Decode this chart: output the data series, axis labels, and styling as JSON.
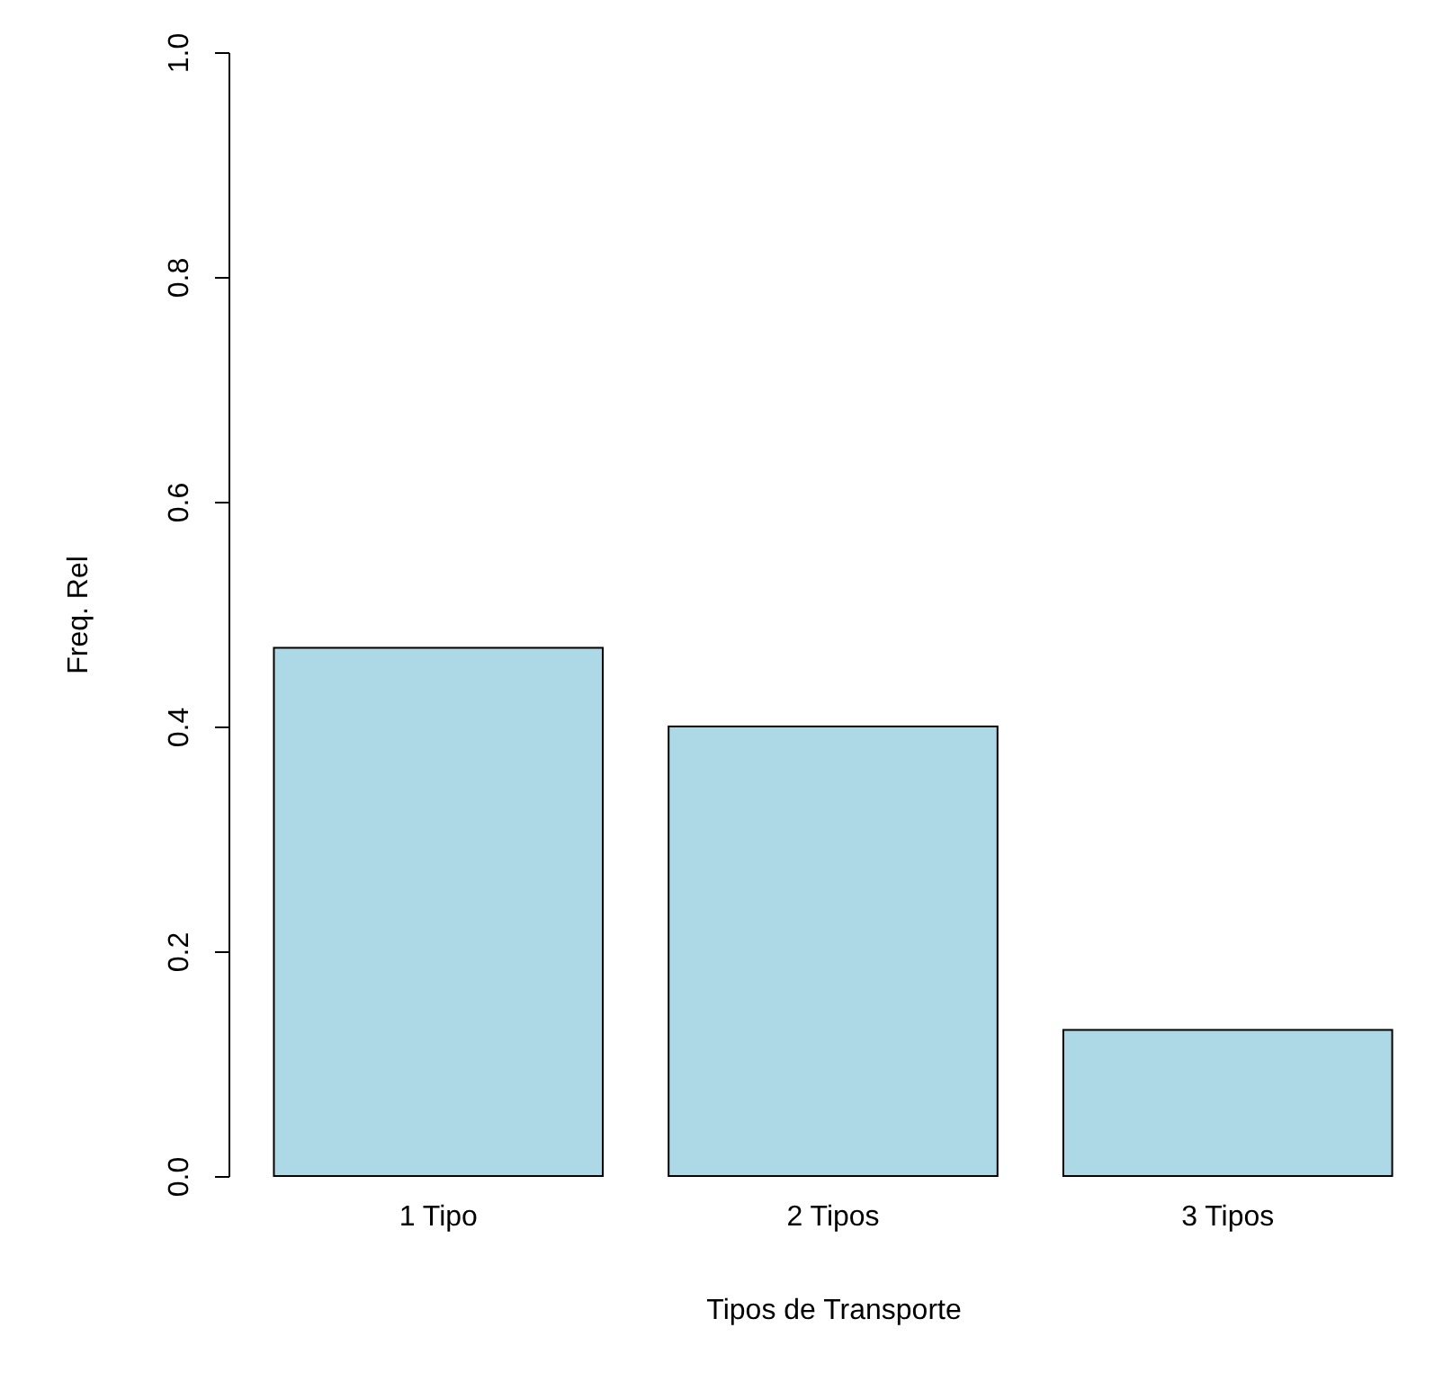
{
  "chart_data": {
    "type": "bar",
    "xlabel": "Tipos de Transporte",
    "ylabel": "Freq. Rel",
    "categories": [
      "1 Tipo",
      "2 Tipos",
      "3 Tipos"
    ],
    "values": [
      0.47,
      0.4,
      0.13
    ],
    "color": "#add8e6",
    "ylim": [
      0,
      1
    ],
    "yticks": [
      {
        "value": 0,
        "label": "0.0"
      },
      0.2,
      0.4,
      0.6,
      0.8,
      {
        "value": 1,
        "label": "1.0"
      }
    ]
  }
}
